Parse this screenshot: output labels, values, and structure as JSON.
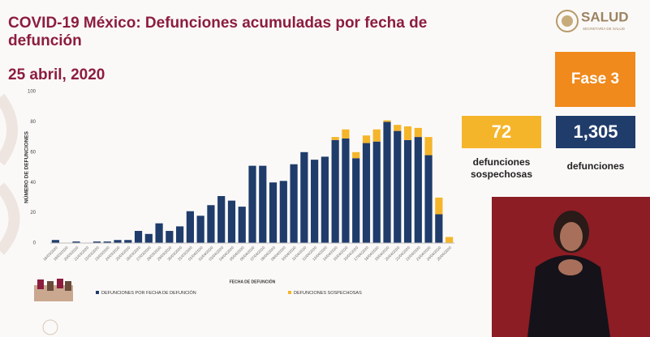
{
  "logo": "SALUD",
  "logo_subtitle": "SECRETARÍA DE SALUD",
  "phase": "Fase 3",
  "stats": [
    {
      "value": 72,
      "label": "defunciones sospechosas"
    },
    {
      "value": 1305,
      "value_label": "1,305",
      "label": "defunciones"
    }
  ],
  "chart_data": {
    "type": "bar",
    "stacked": true,
    "title": "COVID-19 México: Defunciones acumuladas por fecha de defunción",
    "subtitle": "25 abril, 2020",
    "x_label": "FECHA DE DEFUNCIÓN",
    "y_label": "NÚMERO DE DEFUNCIONES",
    "categories": [
      "18/03/2020",
      "19/03/2020",
      "20/03/2020",
      "21/03/2020",
      "22/03/2020",
      "23/03/2020",
      "24/03/2020",
      "25/03/2020",
      "26/03/2020",
      "27/03/2020",
      "28/03/2020",
      "29/03/2020",
      "30/03/2020",
      "31/03/2020",
      "01/04/2020",
      "02/04/2020",
      "03/04/2020",
      "04/04/2020",
      "05/04/2020",
      "06/04/2020",
      "07/04/2020",
      "08/04/2020",
      "09/04/2020",
      "10/04/2020",
      "11/04/2020",
      "12/04/2020",
      "13/04/2020",
      "14/04/2020",
      "15/04/2020",
      "16/04/2020",
      "17/04/2020",
      "18/04/2020",
      "19/04/2020",
      "20/04/2020",
      "21/04/2020",
      "22/04/2020",
      "23/04/2020",
      "24/04/2020",
      "25/04/2020"
    ],
    "series": [
      {
        "name": "DEFUNCIONES POR FECHA DE DEFUNCIÓN",
        "color": "#1f3c6b",
        "values": [
          2,
          0,
          1,
          0,
          1,
          1,
          2,
          2,
          8,
          6,
          13,
          8,
          11,
          21,
          18,
          25,
          31,
          28,
          24,
          51,
          51,
          40,
          41,
          52,
          60,
          55,
          57,
          68,
          69,
          56,
          66,
          67,
          80,
          74,
          68,
          70,
          58,
          19,
          0
        ]
      },
      {
        "name": "DEFUNCIONES SOSPECHOSAS",
        "color": "#f5b52a",
        "values": [
          0,
          0,
          0,
          0,
          0,
          0,
          0,
          0,
          0,
          0,
          0,
          0,
          0,
          0,
          0,
          0,
          0,
          0,
          0,
          0,
          0,
          0,
          0,
          0,
          0,
          0,
          0,
          2,
          6,
          4,
          5,
          8,
          1,
          4,
          9,
          6,
          12,
          11,
          4
        ]
      }
    ],
    "ylim": [
      0,
      100
    ],
    "yticks": [
      0,
      20,
      40,
      60,
      80,
      100
    ],
    "grid": false
  }
}
